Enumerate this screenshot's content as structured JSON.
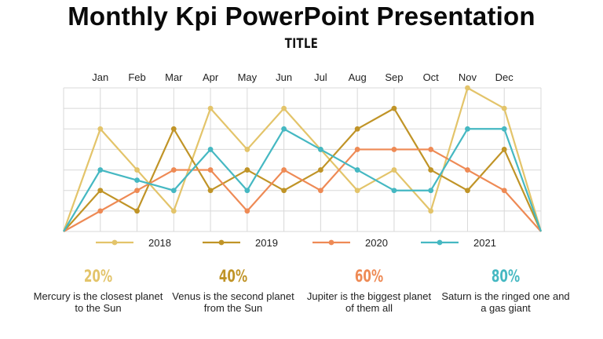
{
  "slide": {
    "title": "Monthly Kpi PowerPoint Presentation",
    "subtitle": "TITLE"
  },
  "colors": {
    "s2018": "#E3C46A",
    "s2019": "#C09427",
    "s2020": "#EE8A55",
    "s2021": "#45B8C2",
    "grid": "#D8D8D8"
  },
  "chart_data": {
    "type": "line",
    "categories": [
      "Jan",
      "Feb",
      "Mar",
      "Apr",
      "May",
      "Jun",
      "Jul",
      "Aug",
      "Sep",
      "Oct",
      "Nov",
      "Dec"
    ],
    "ylim": [
      0,
      7
    ],
    "grid": true,
    "legend_position": "bottom",
    "series": [
      {
        "name": "2018",
        "color": "#E3C46A",
        "start": 0,
        "end": 0,
        "values": [
          5,
          3,
          1,
          6,
          4,
          6,
          4,
          2,
          3,
          1,
          7,
          6
        ]
      },
      {
        "name": "2019",
        "color": "#C09427",
        "start": 0,
        "end": 0,
        "values": [
          2,
          1,
          5,
          2,
          3,
          2,
          3,
          5,
          6,
          3,
          2,
          4
        ]
      },
      {
        "name": "2020",
        "color": "#EE8A55",
        "start": 0,
        "end": 0,
        "values": [
          1,
          2,
          3,
          3,
          1,
          3,
          2,
          4,
          4,
          4,
          3,
          2
        ]
      },
      {
        "name": "2021",
        "color": "#45B8C2",
        "start": 0,
        "end": 0,
        "values": [
          3,
          2.5,
          2,
          4,
          2,
          5,
          4,
          3,
          2,
          2,
          5,
          5
        ]
      }
    ]
  },
  "stats": [
    {
      "percent": "20%",
      "description": "Mercury is the closest planet to the Sun",
      "color": "#E3C46A"
    },
    {
      "percent": "40%",
      "description": "Venus is the second planet from the Sun",
      "color": "#C09427"
    },
    {
      "percent": "60%",
      "description": "Jupiter is the biggest planet of them all",
      "color": "#EE8A55"
    },
    {
      "percent": "80%",
      "description": "Saturn is the ringed one and a gas giant",
      "color": "#45B8C2"
    }
  ]
}
